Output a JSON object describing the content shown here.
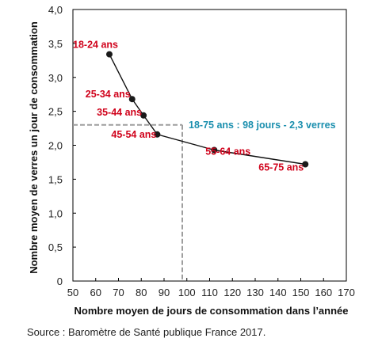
{
  "chart_data": {
    "type": "scatter",
    "title": "",
    "xlabel": "Nombre moyen de jours de consommation dans l’année",
    "ylabel": "Nombre moyen de verres un jour de consommation",
    "xlim": [
      50,
      170
    ],
    "ylim": [
      0,
      4.0
    ],
    "x_ticks": [
      "50",
      "60",
      "70",
      "80",
      "90",
      "100",
      "110",
      "120",
      "130",
      "140",
      "150",
      "160",
      "170"
    ],
    "y_ticks": [
      "0",
      "0,5",
      "1,0",
      "1,5",
      "2,0",
      "2,5",
      "3,0",
      "3,5",
      "4,0"
    ],
    "grid": false,
    "points": [
      {
        "label": "18-24 ans",
        "x": 66,
        "y": 3.34
      },
      {
        "label": "25-34 ans",
        "x": 76,
        "y": 2.68
      },
      {
        "label": "35-44 ans",
        "x": 81,
        "y": 2.44
      },
      {
        "label": "45-54 ans",
        "x": 87,
        "y": 2.16
      },
      {
        "label": "55-64 ans",
        "x": 112,
        "y": 1.93
      },
      {
        "label": "65-75 ans",
        "x": 152,
        "y": 1.72
      }
    ],
    "reference": {
      "label": "18-75 ans : 98 jours - 2,3 verres",
      "x": 98,
      "y": 2.3
    },
    "colors": {
      "points": "#1a1a1a",
      "point_labels": "#d0021b",
      "reference_label": "#1b8fae",
      "reference_lines": "#9e9e9e"
    }
  },
  "source": "Source : Baromètre de Santé publique France 2017."
}
